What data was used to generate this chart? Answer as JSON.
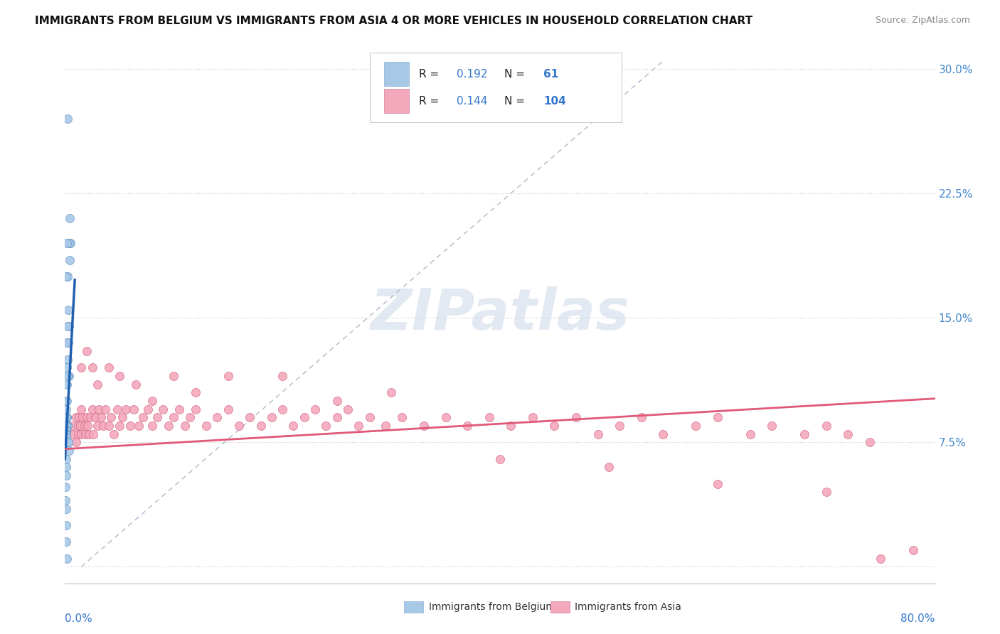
{
  "title": "IMMIGRANTS FROM BELGIUM VS IMMIGRANTS FROM ASIA 4 OR MORE VEHICLES IN HOUSEHOLD CORRELATION CHART",
  "source": "Source: ZipAtlas.com",
  "xmin": 0.0,
  "xmax": 0.8,
  "ymin": -0.01,
  "ymax": 0.315,
  "ylabel_ticks": [
    0.0,
    0.075,
    0.15,
    0.225,
    0.3
  ],
  "ylabel_labels": [
    "",
    "7.5%",
    "15.0%",
    "22.5%",
    "30.0%"
  ],
  "R_belgium": 0.192,
  "N_belgium": 61,
  "R_asia": 0.144,
  "N_asia": 104,
  "color_belgium": "#a8c8e8",
  "color_asia": "#f4a8bc",
  "color_belgium_line": "#2060b0",
  "color_asia_line": "#e05878",
  "legend_label_belgium": "Immigrants from Belgium",
  "legend_label_asia": "Immigrants from Asia",
  "watermark": "ZIPatlas",
  "bel_x": [
    0.003,
    0.004,
    0.005,
    0.004,
    0.003,
    0.002,
    0.003,
    0.004,
    0.002,
    0.003,
    0.001,
    0.002,
    0.002,
    0.003,
    0.002,
    0.003,
    0.002,
    0.001,
    0.002,
    0.002,
    0.001,
    0.001,
    0.002,
    0.001,
    0.002,
    0.001,
    0.001,
    0.001,
    0.002,
    0.001,
    0.001,
    0.001,
    0.001,
    0.001,
    0.001,
    0.001,
    0.001,
    0.001,
    0.001,
    0.001,
    0.001,
    0.001,
    0.001,
    0.001,
    0.001,
    0.001,
    0.001,
    0.002,
    0.002,
    0.002,
    0.003,
    0.004,
    0.001,
    0.001,
    0.001,
    0.001,
    0.001,
    0.001,
    0.001,
    0.001,
    0.001
  ],
  "bel_y": [
    0.27,
    0.21,
    0.195,
    0.185,
    0.195,
    0.175,
    0.155,
    0.145,
    0.195,
    0.135,
    0.175,
    0.145,
    0.135,
    0.125,
    0.12,
    0.115,
    0.11,
    0.1,
    0.115,
    0.1,
    0.095,
    0.09,
    0.09,
    0.09,
    0.085,
    0.085,
    0.085,
    0.085,
    0.085,
    0.085,
    0.085,
    0.085,
    0.082,
    0.082,
    0.08,
    0.08,
    0.08,
    0.08,
    0.08,
    0.08,
    0.08,
    0.08,
    0.078,
    0.078,
    0.075,
    0.075,
    0.075,
    0.075,
    0.075,
    0.075,
    0.075,
    0.07,
    0.065,
    0.06,
    0.055,
    0.048,
    0.04,
    0.035,
    0.025,
    0.015,
    0.005
  ],
  "asia_x": [
    0.006,
    0.008,
    0.01,
    0.01,
    0.012,
    0.012,
    0.013,
    0.014,
    0.015,
    0.015,
    0.016,
    0.018,
    0.019,
    0.02,
    0.021,
    0.022,
    0.023,
    0.025,
    0.026,
    0.028,
    0.03,
    0.031,
    0.033,
    0.035,
    0.037,
    0.04,
    0.042,
    0.045,
    0.048,
    0.05,
    0.053,
    0.056,
    0.06,
    0.063,
    0.068,
    0.072,
    0.076,
    0.08,
    0.085,
    0.09,
    0.095,
    0.1,
    0.105,
    0.11,
    0.115,
    0.12,
    0.13,
    0.14,
    0.15,
    0.16,
    0.17,
    0.18,
    0.19,
    0.2,
    0.21,
    0.22,
    0.23,
    0.24,
    0.25,
    0.26,
    0.27,
    0.28,
    0.295,
    0.31,
    0.33,
    0.35,
    0.37,
    0.39,
    0.41,
    0.43,
    0.45,
    0.47,
    0.49,
    0.51,
    0.53,
    0.55,
    0.58,
    0.6,
    0.63,
    0.65,
    0.68,
    0.7,
    0.72,
    0.74,
    0.015,
    0.02,
    0.025,
    0.03,
    0.04,
    0.05,
    0.065,
    0.08,
    0.1,
    0.12,
    0.15,
    0.2,
    0.25,
    0.3,
    0.4,
    0.5,
    0.6,
    0.7,
    0.75,
    0.78
  ],
  "asia_y": [
    0.085,
    0.08,
    0.09,
    0.075,
    0.085,
    0.08,
    0.09,
    0.085,
    0.095,
    0.08,
    0.09,
    0.085,
    0.08,
    0.09,
    0.085,
    0.08,
    0.09,
    0.095,
    0.08,
    0.09,
    0.085,
    0.095,
    0.09,
    0.085,
    0.095,
    0.085,
    0.09,
    0.08,
    0.095,
    0.085,
    0.09,
    0.095,
    0.085,
    0.095,
    0.085,
    0.09,
    0.095,
    0.085,
    0.09,
    0.095,
    0.085,
    0.09,
    0.095,
    0.085,
    0.09,
    0.095,
    0.085,
    0.09,
    0.095,
    0.085,
    0.09,
    0.085,
    0.09,
    0.095,
    0.085,
    0.09,
    0.095,
    0.085,
    0.09,
    0.095,
    0.085,
    0.09,
    0.085,
    0.09,
    0.085,
    0.09,
    0.085,
    0.09,
    0.085,
    0.09,
    0.085,
    0.09,
    0.08,
    0.085,
    0.09,
    0.08,
    0.085,
    0.09,
    0.08,
    0.085,
    0.08,
    0.085,
    0.08,
    0.075,
    0.12,
    0.13,
    0.12,
    0.11,
    0.12,
    0.115,
    0.11,
    0.1,
    0.115,
    0.105,
    0.115,
    0.115,
    0.1,
    0.105,
    0.065,
    0.06,
    0.05,
    0.045,
    0.005,
    0.01
  ]
}
